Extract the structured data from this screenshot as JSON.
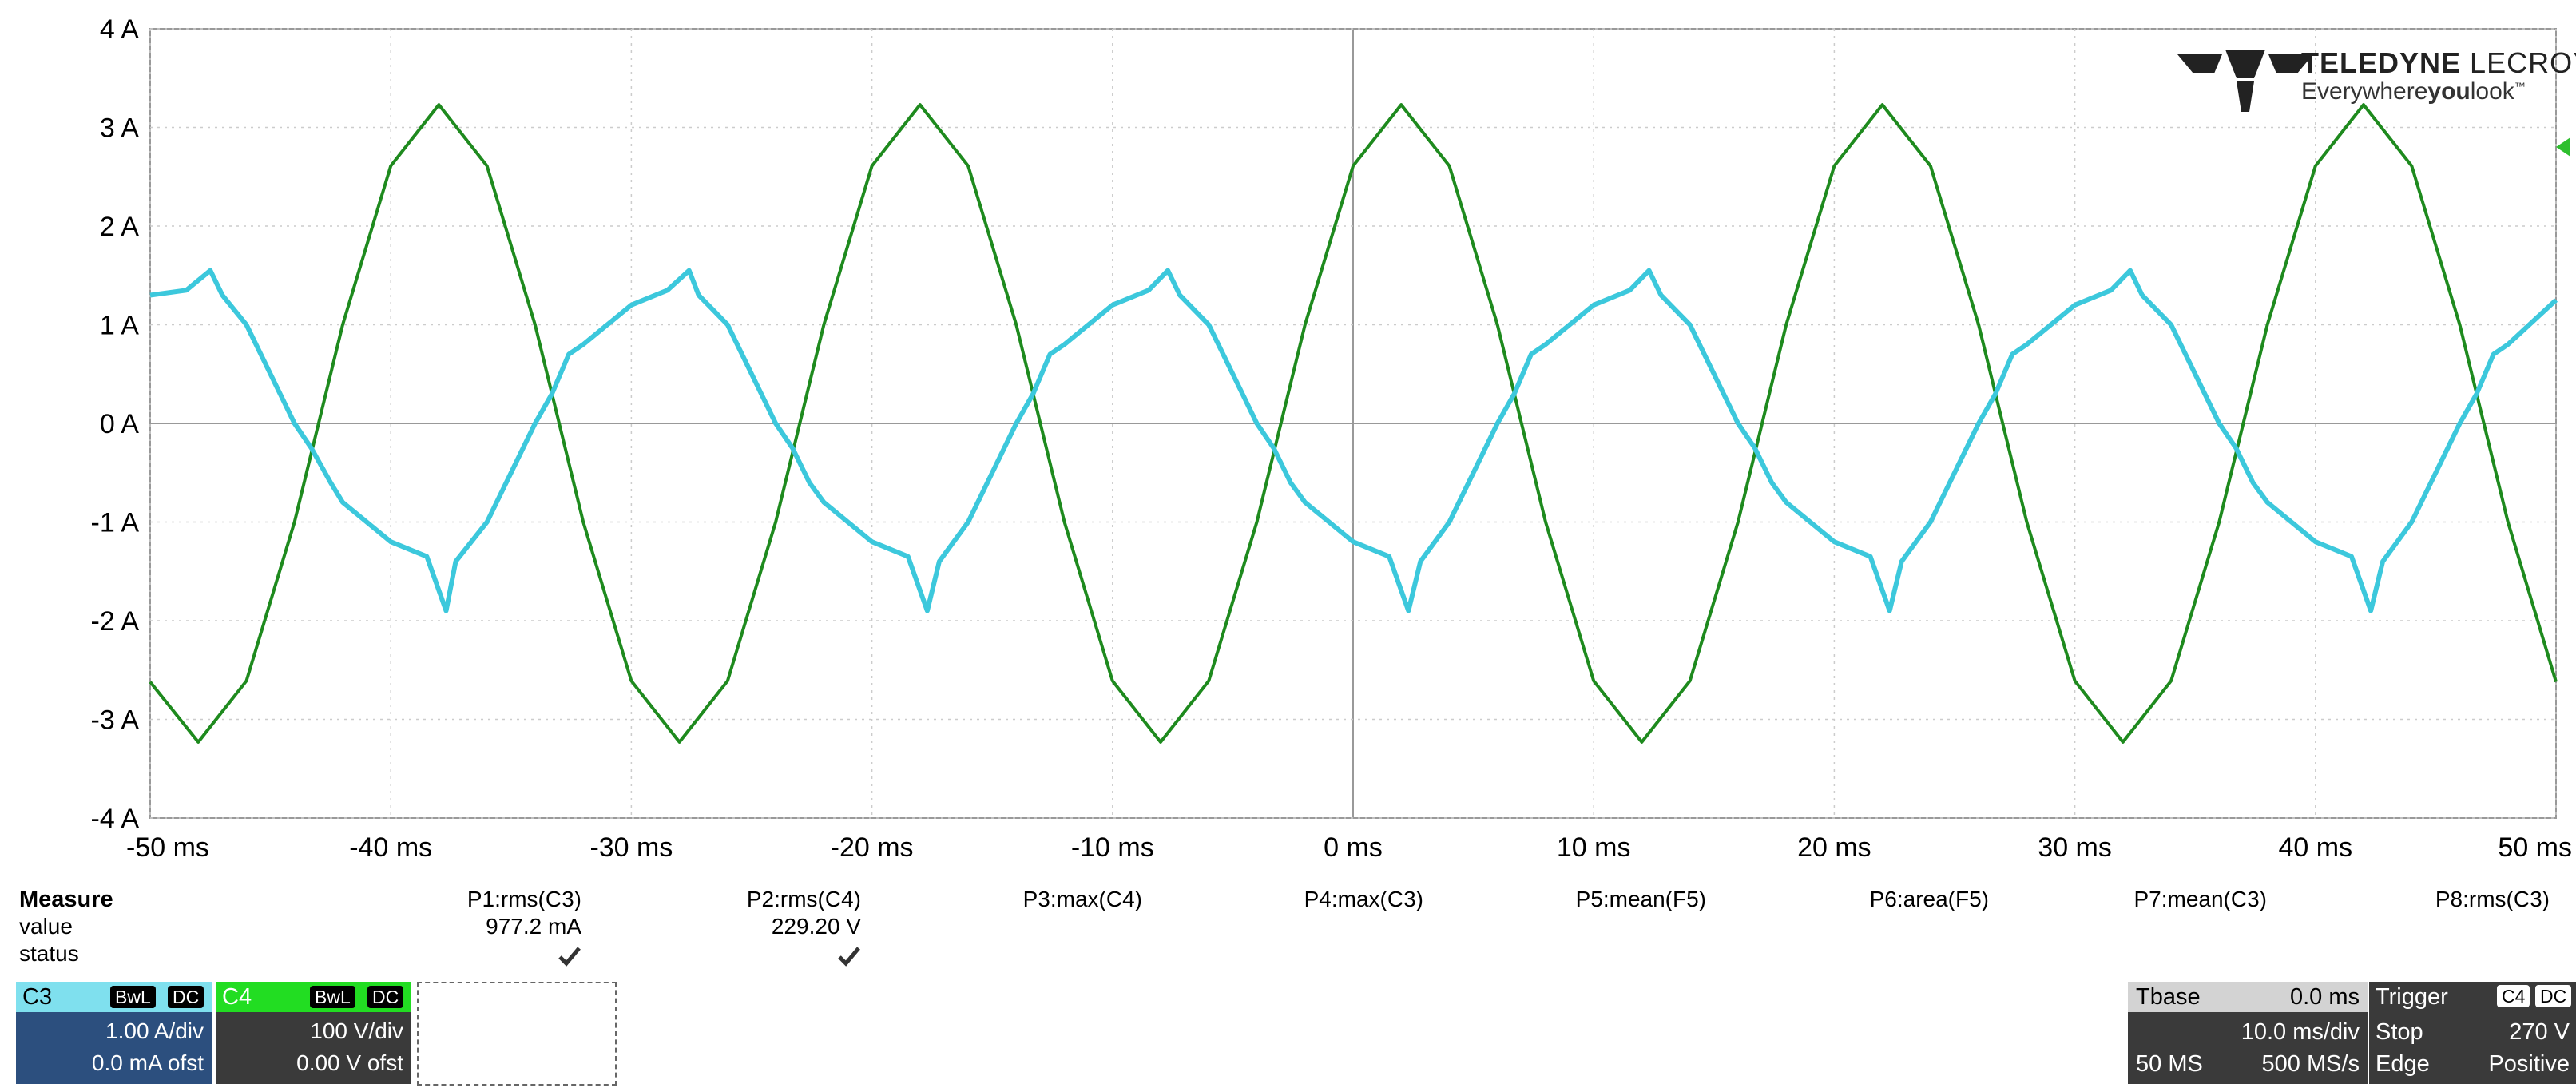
{
  "logo": {
    "brand_bold": "TELEDYNE",
    "brand_thin": "LECROY",
    "tag_pre": "Everywhere",
    "tag_bold": "you",
    "tag_post": "look",
    "tm": "™"
  },
  "chart_data": {
    "type": "line",
    "xlabel": "",
    "ylabel": "",
    "xlim": [
      -50,
      50
    ],
    "ylim": [
      -4,
      4
    ],
    "grid": true,
    "x_ticks": [
      "-50 ms",
      "-40 ms",
      "-30 ms",
      "-20 ms",
      "-10 ms",
      "0 ms",
      "10 ms",
      "20 ms",
      "30 ms",
      "40 ms",
      "50 ms"
    ],
    "y_ticks": [
      "4 A",
      "3 A",
      "2 A",
      "1 A",
      "0 A",
      "-1 A",
      "-2 A",
      "-3 A",
      "-4 A"
    ],
    "series": [
      {
        "name": "C4",
        "color": "#1e8a1e",
        "x": [
          -50,
          -48,
          -46,
          -44,
          -42,
          -40,
          -38,
          -36,
          -34,
          -32,
          -30,
          -28,
          -26,
          -24,
          -22,
          -20,
          -18,
          -16,
          -14,
          -12,
          -10,
          -8,
          -6,
          -4,
          -2,
          0,
          2,
          4,
          6,
          8,
          10,
          12,
          14,
          16,
          18,
          20,
          22,
          24,
          26,
          28,
          30,
          32,
          34,
          36,
          38,
          40,
          42,
          44,
          46,
          48,
          50
        ],
        "y": [
          -2.62,
          -3.23,
          -2.61,
          -1.0,
          1.0,
          2.61,
          3.23,
          2.61,
          1.0,
          -1.0,
          -2.61,
          -3.23,
          -2.61,
          -1.0,
          1.0,
          2.61,
          3.23,
          2.61,
          1.0,
          -1.0,
          -2.61,
          -3.23,
          -2.61,
          -1.0,
          1.0,
          2.61,
          3.23,
          2.61,
          1.0,
          -1.0,
          -2.61,
          -3.23,
          -2.61,
          -1.0,
          1.0,
          2.61,
          3.23,
          2.61,
          1.0,
          -1.0,
          -2.61,
          -3.23,
          -2.61,
          -1.0,
          1.0,
          2.61,
          3.23,
          2.61,
          1.0,
          -1.0,
          -2.62
        ]
      },
      {
        "name": "C3",
        "color": "#3cc8dc",
        "x": [
          -50,
          -48.5,
          -47.5,
          -47,
          -46,
          -44,
          -43.3,
          -42.5,
          -42,
          -40,
          -38.5,
          -37.7,
          -37.3,
          -36,
          -34,
          -33.3,
          -32.6,
          -32,
          -30,
          -28.5,
          -27.6,
          -27.2,
          -26,
          -24,
          -23.3,
          -22.6,
          -22,
          -20,
          -18.5,
          -17.7,
          -17.2,
          -16,
          -14,
          -13.3,
          -12.6,
          -12,
          -10,
          -8.5,
          -7.7,
          -7.2,
          -6,
          -4,
          -3.3,
          -2.6,
          -2,
          0,
          1.5,
          2.3,
          2.8,
          4,
          6,
          6.7,
          7.4,
          8,
          10,
          11.5,
          12.3,
          12.8,
          14,
          16,
          16.7,
          17.4,
          18,
          20,
          21.5,
          22.3,
          22.8,
          24,
          26,
          26.7,
          27.4,
          28,
          30,
          31.5,
          32.3,
          32.8,
          34,
          36,
          36.7,
          37.4,
          38,
          40,
          41.5,
          42.3,
          42.8,
          44,
          46,
          46.7,
          47.4,
          48,
          50
        ],
        "y": [
          1.3,
          1.35,
          1.55,
          1.3,
          1.0,
          0.0,
          -0.25,
          -0.6,
          -0.8,
          -1.2,
          -1.35,
          -1.9,
          -1.4,
          -1.0,
          0.0,
          0.3,
          0.7,
          0.8,
          1.2,
          1.35,
          1.55,
          1.3,
          1.0,
          0.0,
          -0.25,
          -0.6,
          -0.8,
          -1.2,
          -1.35,
          -1.9,
          -1.4,
          -1.0,
          0.0,
          0.3,
          0.7,
          0.8,
          1.2,
          1.35,
          1.55,
          1.3,
          1.0,
          0.0,
          -0.25,
          -0.6,
          -0.8,
          -1.2,
          -1.35,
          -1.9,
          -1.4,
          -1.0,
          0.0,
          0.3,
          0.7,
          0.8,
          1.2,
          1.35,
          1.55,
          1.3,
          1.0,
          0.0,
          -0.25,
          -0.6,
          -0.8,
          -1.2,
          -1.35,
          -1.9,
          -1.4,
          -1.0,
          0.0,
          0.3,
          0.7,
          0.8,
          1.2,
          1.35,
          1.55,
          1.3,
          1.0,
          0.0,
          -0.25,
          -0.6,
          -0.8,
          -1.2,
          -1.35,
          -1.9,
          -1.4,
          -1.0,
          0.0,
          0.3,
          0.7,
          0.8,
          1.25
        ]
      }
    ]
  },
  "measure": {
    "title": "Measure",
    "row_value": "value",
    "row_status": "status",
    "params": [
      {
        "label": "P1:rms(C3)",
        "value": "977.2 mA",
        "status": true
      },
      {
        "label": "P2:rms(C4)",
        "value": "229.20 V",
        "status": true
      },
      {
        "label": "P3:max(C4)",
        "value": "",
        "status": false
      },
      {
        "label": "P4:max(C3)",
        "value": "",
        "status": false
      },
      {
        "label": "P5:mean(F5)",
        "value": "",
        "status": false
      },
      {
        "label": "P6:area(F5)",
        "value": "",
        "status": false
      },
      {
        "label": "P7:mean(C3)",
        "value": "",
        "status": false
      },
      {
        "label": "P8:rms(C3)",
        "value": "",
        "status": false
      }
    ]
  },
  "channels": {
    "c3": {
      "name": "C3",
      "bw": "BwL",
      "coupling": "DC",
      "scale": "1.00 A/div",
      "offset": "0.0 mA ofst",
      "color": "#7fe0ee",
      "body": "#2c4f7e"
    },
    "c4": {
      "name": "C4",
      "bw": "BwL",
      "coupling": "DC",
      "scale": "100 V/div",
      "offset": "0.00 V ofst",
      "color": "#22dd22",
      "body": "#3a3a3a"
    }
  },
  "tbase": {
    "label": "Tbase",
    "delay": "0.0 ms",
    "div": "10.0 ms/div",
    "samples": "50 MS",
    "rate": "500 MS/s"
  },
  "trigger": {
    "label": "Trigger",
    "source": "C4",
    "coupling": "DC",
    "mode": "Stop",
    "level": "270 V",
    "type": "Edge",
    "slope": "Positive"
  }
}
